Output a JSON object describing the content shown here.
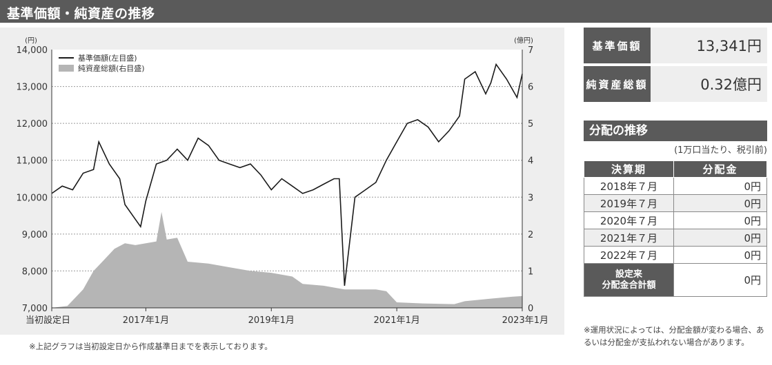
{
  "header": {
    "title": "基準価額・純資産の推移"
  },
  "chart_data": {
    "type": "line",
    "y_left": {
      "unit": "(円)",
      "range": [
        7000,
        14000
      ],
      "ticks": [
        "7,000",
        "8,000",
        "9,000",
        "10,000",
        "11,000",
        "12,000",
        "13,000",
        "14,000"
      ]
    },
    "y_right": {
      "unit": "(億円)",
      "range": [
        0,
        7
      ],
      "ticks": [
        "0",
        "1",
        "2",
        "3",
        "4",
        "5",
        "6",
        "7"
      ]
    },
    "x_range": [
      "2015-07",
      "2023-01"
    ],
    "x_ticks": [
      {
        "date": "2015-07",
        "label": "当初設定日"
      },
      {
        "date": "2017-01",
        "label": "2017年1月"
      },
      {
        "date": "2019-01",
        "label": "2019年1月"
      },
      {
        "date": "2021-01",
        "label": "2021年1月"
      },
      {
        "date": "2023-01",
        "label": "2023年1月"
      }
    ],
    "legend": [
      {
        "name": "基準価額(左目盛)",
        "kind": "line",
        "color": "#1a1a1a"
      },
      {
        "name": "純資産総額(右目盛)",
        "kind": "area",
        "color": "#b5b5b5"
      }
    ],
    "legend_position": "top-left",
    "grid": "horizontal-dotted",
    "series": [
      {
        "name": "基準価額(左目盛)",
        "axis": "left",
        "points": [
          [
            "2015-07",
            10100
          ],
          [
            "2015-09",
            10300
          ],
          [
            "2015-11",
            10200
          ],
          [
            "2016-01",
            10650
          ],
          [
            "2016-03",
            10750
          ],
          [
            "2016-04",
            11500
          ],
          [
            "2016-06",
            10900
          ],
          [
            "2016-08",
            10500
          ],
          [
            "2016-09",
            9800
          ],
          [
            "2016-11",
            9400
          ],
          [
            "2016-12",
            9200
          ],
          [
            "2017-01",
            9900
          ],
          [
            "2017-03",
            10900
          ],
          [
            "2017-05",
            11000
          ],
          [
            "2017-07",
            11300
          ],
          [
            "2017-09",
            11000
          ],
          [
            "2017-11",
            11600
          ],
          [
            "2018-01",
            11400
          ],
          [
            "2018-03",
            11000
          ],
          [
            "2018-05",
            10900
          ],
          [
            "2018-07",
            10800
          ],
          [
            "2018-09",
            10900
          ],
          [
            "2018-11",
            10600
          ],
          [
            "2019-01",
            10200
          ],
          [
            "2019-03",
            10500
          ],
          [
            "2019-05",
            10300
          ],
          [
            "2019-07",
            10100
          ],
          [
            "2019-09",
            10200
          ],
          [
            "2019-11",
            10350
          ],
          [
            "2020-01",
            10500
          ],
          [
            "2020-02",
            10500
          ],
          [
            "2020-03",
            7600
          ],
          [
            "2020-05",
            10000
          ],
          [
            "2020-07",
            10200
          ],
          [
            "2020-09",
            10400
          ],
          [
            "2020-11",
            11000
          ],
          [
            "2021-01",
            11500
          ],
          [
            "2021-03",
            12000
          ],
          [
            "2021-05",
            12100
          ],
          [
            "2021-07",
            11900
          ],
          [
            "2021-09",
            11500
          ],
          [
            "2021-11",
            11800
          ],
          [
            "2022-01",
            12200
          ],
          [
            "2022-02",
            13200
          ],
          [
            "2022-04",
            13400
          ],
          [
            "2022-06",
            12800
          ],
          [
            "2022-07",
            13100
          ],
          [
            "2022-08",
            13600
          ],
          [
            "2022-10",
            13200
          ],
          [
            "2022-12",
            12700
          ],
          [
            "2023-01",
            13341
          ]
        ]
      },
      {
        "name": "純資産総額(右目盛)",
        "axis": "right",
        "points": [
          [
            "2015-07",
            0
          ],
          [
            "2015-10",
            0.05
          ],
          [
            "2016-01",
            0.5
          ],
          [
            "2016-03",
            1.0
          ],
          [
            "2016-05",
            1.3
          ],
          [
            "2016-07",
            1.6
          ],
          [
            "2016-09",
            1.75
          ],
          [
            "2016-11",
            1.7
          ],
          [
            "2017-01",
            1.75
          ],
          [
            "2017-03",
            1.8
          ],
          [
            "2017-04",
            2.6
          ],
          [
            "2017-05",
            1.85
          ],
          [
            "2017-07",
            1.9
          ],
          [
            "2017-09",
            1.25
          ],
          [
            "2018-01",
            1.2
          ],
          [
            "2018-05",
            1.1
          ],
          [
            "2018-09",
            1.0
          ],
          [
            "2019-01",
            0.95
          ],
          [
            "2019-05",
            0.85
          ],
          [
            "2019-07",
            0.65
          ],
          [
            "2019-11",
            0.6
          ],
          [
            "2020-03",
            0.5
          ],
          [
            "2020-07",
            0.5
          ],
          [
            "2020-09",
            0.5
          ],
          [
            "2020-11",
            0.45
          ],
          [
            "2021-01",
            0.15
          ],
          [
            "2021-06",
            0.12
          ],
          [
            "2021-12",
            0.1
          ],
          [
            "2022-02",
            0.18
          ],
          [
            "2022-07",
            0.25
          ],
          [
            "2022-11",
            0.3
          ],
          [
            "2023-01",
            0.32
          ]
        ]
      }
    ]
  },
  "chart_footnote": "※上記グラフは当初設定日から作成基準日までを表示しております。",
  "summary": [
    {
      "label": "基準価額",
      "value": "13,341円"
    },
    {
      "label": "純資産総額",
      "value": "0.32億円"
    }
  ],
  "distribution": {
    "title": "分配の推移",
    "note": "(1万口当たり、税引前)",
    "headers": [
      "決算期",
      "分配金"
    ],
    "rows": [
      {
        "period": "2018年７月",
        "amount": "0円"
      },
      {
        "period": "2019年７月",
        "amount": "0円"
      },
      {
        "period": "2020年７月",
        "amount": "0円"
      },
      {
        "period": "2021年７月",
        "amount": "0円"
      },
      {
        "period": "2022年７月",
        "amount": "0円"
      }
    ],
    "total_label_1": "設定来",
    "total_label_2": "分配金合計額",
    "total_amount": "0円"
  },
  "disclaimer": "※運用状況によっては、分配金額が変わる場合、あるいは分配金が支払われない場合があります。"
}
